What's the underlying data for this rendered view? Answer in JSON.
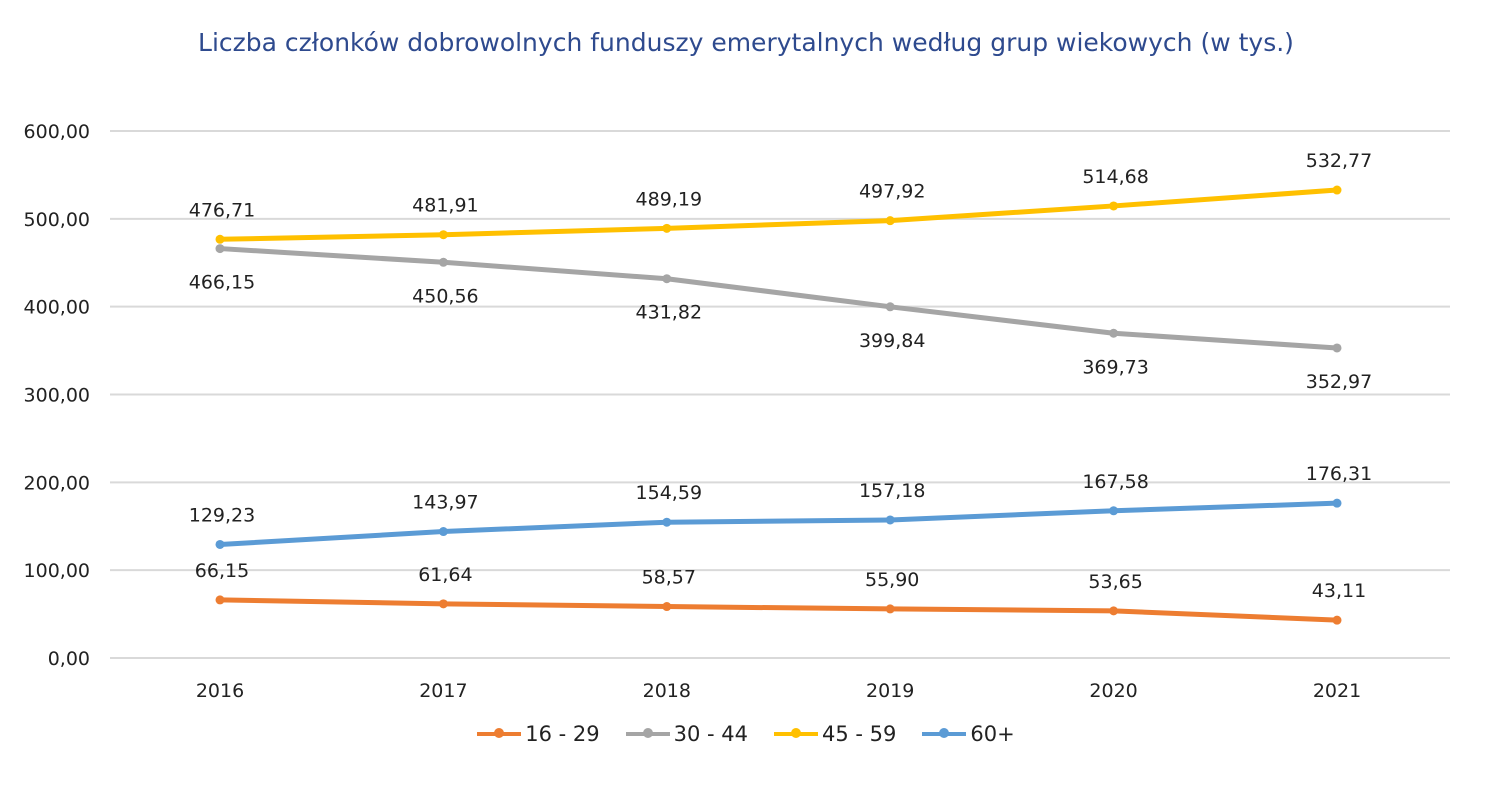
{
  "chart_data": {
    "type": "line",
    "title": "Liczba członków dobrowolnych funduszy emerytalnych według grup wiekowych (w tys.)",
    "categories": [
      "2016",
      "2017",
      "2018",
      "2019",
      "2020",
      "2021"
    ],
    "ylim": [
      0,
      600
    ],
    "yticks": [
      "0,00",
      "100,00",
      "200,00",
      "300,00",
      "400,00",
      "500,00",
      "600,00"
    ],
    "grid": true,
    "legend_position": "bottom",
    "series": [
      {
        "name": "16 - 29",
        "color": "#ed7d31",
        "values": [
          66.15,
          61.64,
          58.57,
          55.9,
          53.65,
          43.11
        ],
        "labels": [
          "66,15",
          "61,64",
          "58,57",
          "55,90",
          "53,65",
          "43,11"
        ]
      },
      {
        "name": "30 - 44",
        "color": "#a5a5a5",
        "values": [
          466.15,
          450.56,
          431.82,
          399.84,
          369.73,
          352.97
        ],
        "labels": [
          "466,15",
          "450,56",
          "431,82",
          "399,84",
          "369,73",
          "352,97"
        ]
      },
      {
        "name": "45 - 59",
        "color": "#ffc000",
        "values": [
          476.71,
          481.91,
          489.19,
          497.92,
          514.68,
          532.77
        ],
        "labels": [
          "476,71",
          "481,91",
          "489,19",
          "497,92",
          "514,68",
          "532,77"
        ]
      },
      {
        "name": "60+",
        "color": "#5b9bd5",
        "values": [
          129.23,
          143.97,
          154.59,
          157.18,
          167.58,
          176.31
        ],
        "labels": [
          "129,23",
          "143,97",
          "154,59",
          "157,18",
          "167,58",
          "176,31"
        ]
      }
    ]
  }
}
